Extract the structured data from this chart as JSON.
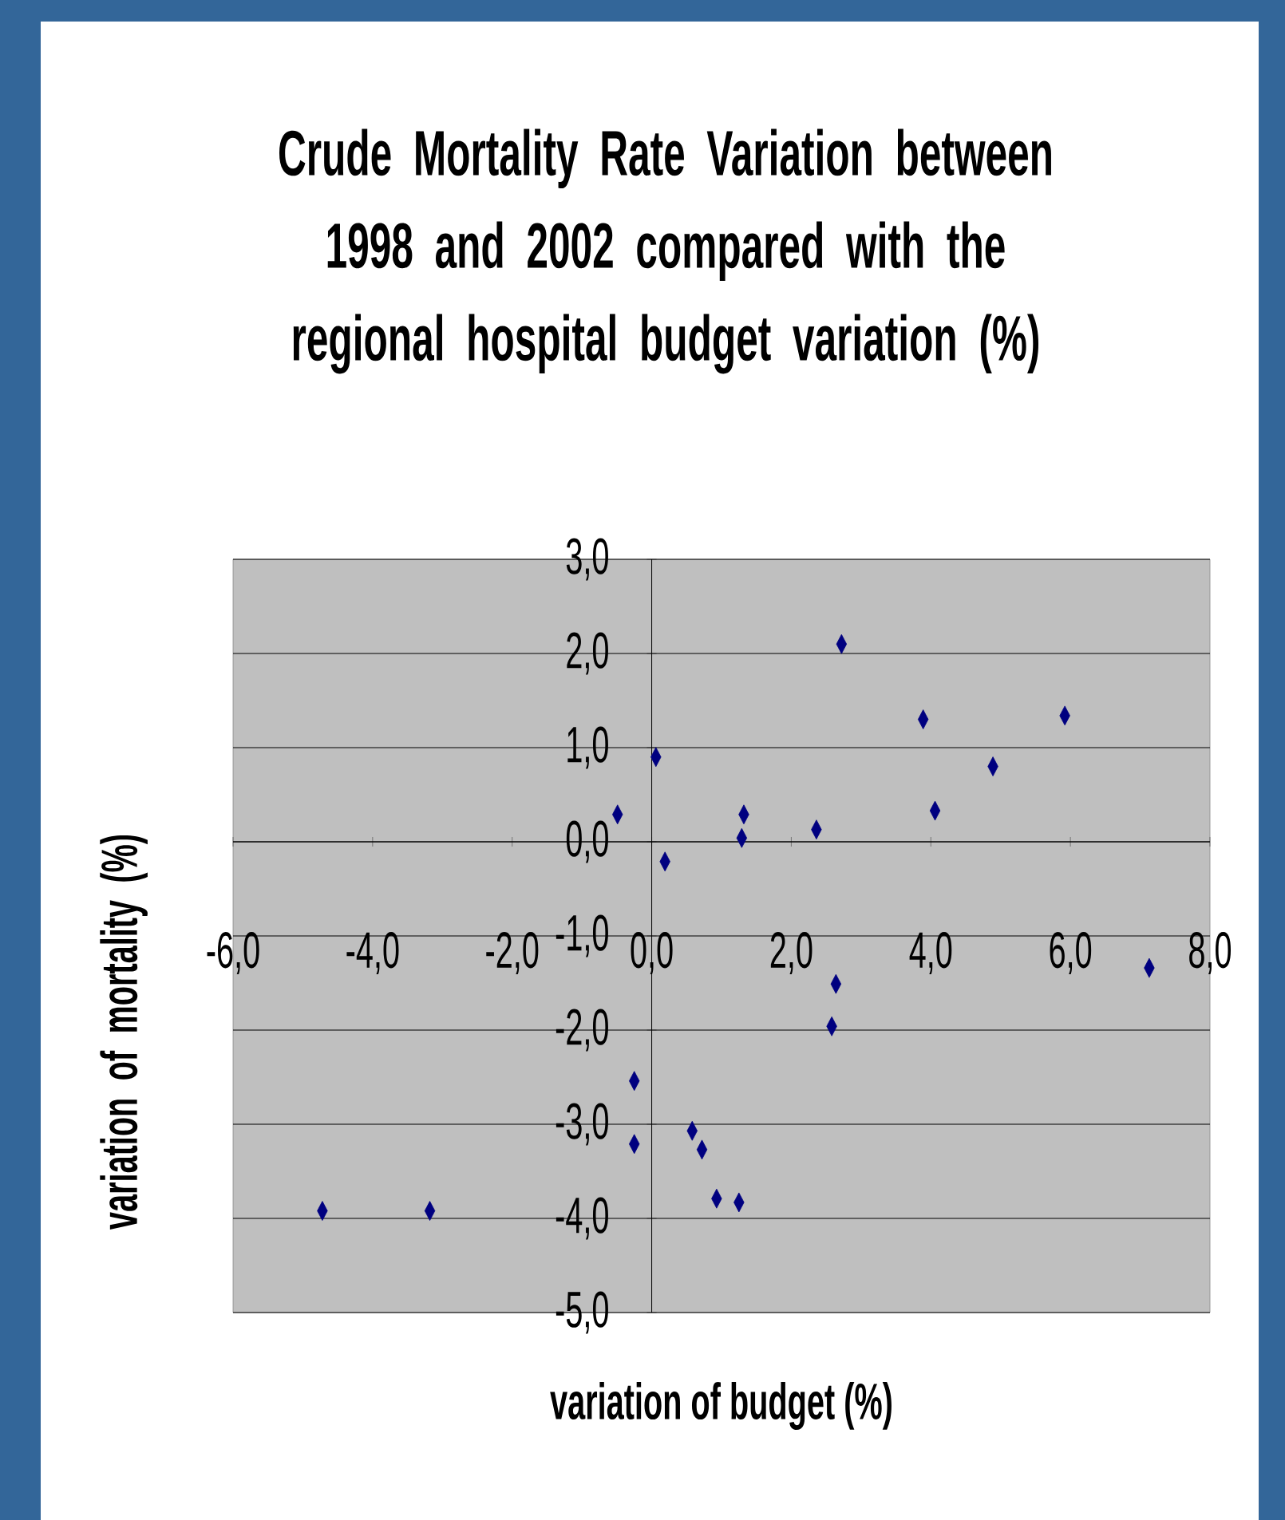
{
  "chart_data": {
    "type": "scatter",
    "title": "Crude Mortality Rate Variation  between 1998 and  2002 compared with the regional hospital budget variation   (%)",
    "xlabel": "variation of budget (%)",
    "ylabel": "variation of mortality (%)",
    "x": [
      -0.49,
      0.06,
      0.19,
      1.32,
      1.29,
      2.36,
      2.72,
      3.89,
      4.06,
      4.89,
      5.92,
      7.13,
      2.64,
      2.58,
      -0.25,
      -0.25,
      0.58,
      0.72,
      0.93,
      1.25,
      -4.72,
      -3.18
    ],
    "values": [
      0.29,
      0.9,
      -0.21,
      0.29,
      0.04,
      0.13,
      2.1,
      1.3,
      0.33,
      0.8,
      1.34,
      -1.34,
      -1.51,
      -1.96,
      -2.54,
      -3.21,
      -3.07,
      -3.27,
      -3.79,
      -3.83,
      -3.92,
      -3.92
    ],
    "color": "#000080",
    "marker": "diamond",
    "grid": "y",
    "xlim": [
      -6,
      8
    ],
    "ylim": [
      -5,
      3
    ],
    "xticks": [
      {
        "value": -6,
        "label": "-6,0"
      },
      {
        "value": -4,
        "label": "-4,0"
      },
      {
        "value": -2,
        "label": "-2,0"
      },
      {
        "value": 0,
        "label": "0,0"
      },
      {
        "value": 2,
        "label": "2,0"
      },
      {
        "value": 4,
        "label": "4,0"
      },
      {
        "value": 6,
        "label": "6,0"
      },
      {
        "value": 8,
        "label": "8,0"
      }
    ],
    "yticks": [
      {
        "value": -5,
        "label": "-5,0"
      },
      {
        "value": -4,
        "label": "-4,0"
      },
      {
        "value": -3,
        "label": "-3,0"
      },
      {
        "value": -2,
        "label": "-2,0"
      },
      {
        "value": -1,
        "label": "-1,0"
      },
      {
        "value": 0,
        "label": "0,0"
      },
      {
        "value": 1,
        "label": "1,0"
      },
      {
        "value": 2,
        "label": "2,0"
      },
      {
        "value": 3,
        "label": "3,0"
      }
    ]
  }
}
